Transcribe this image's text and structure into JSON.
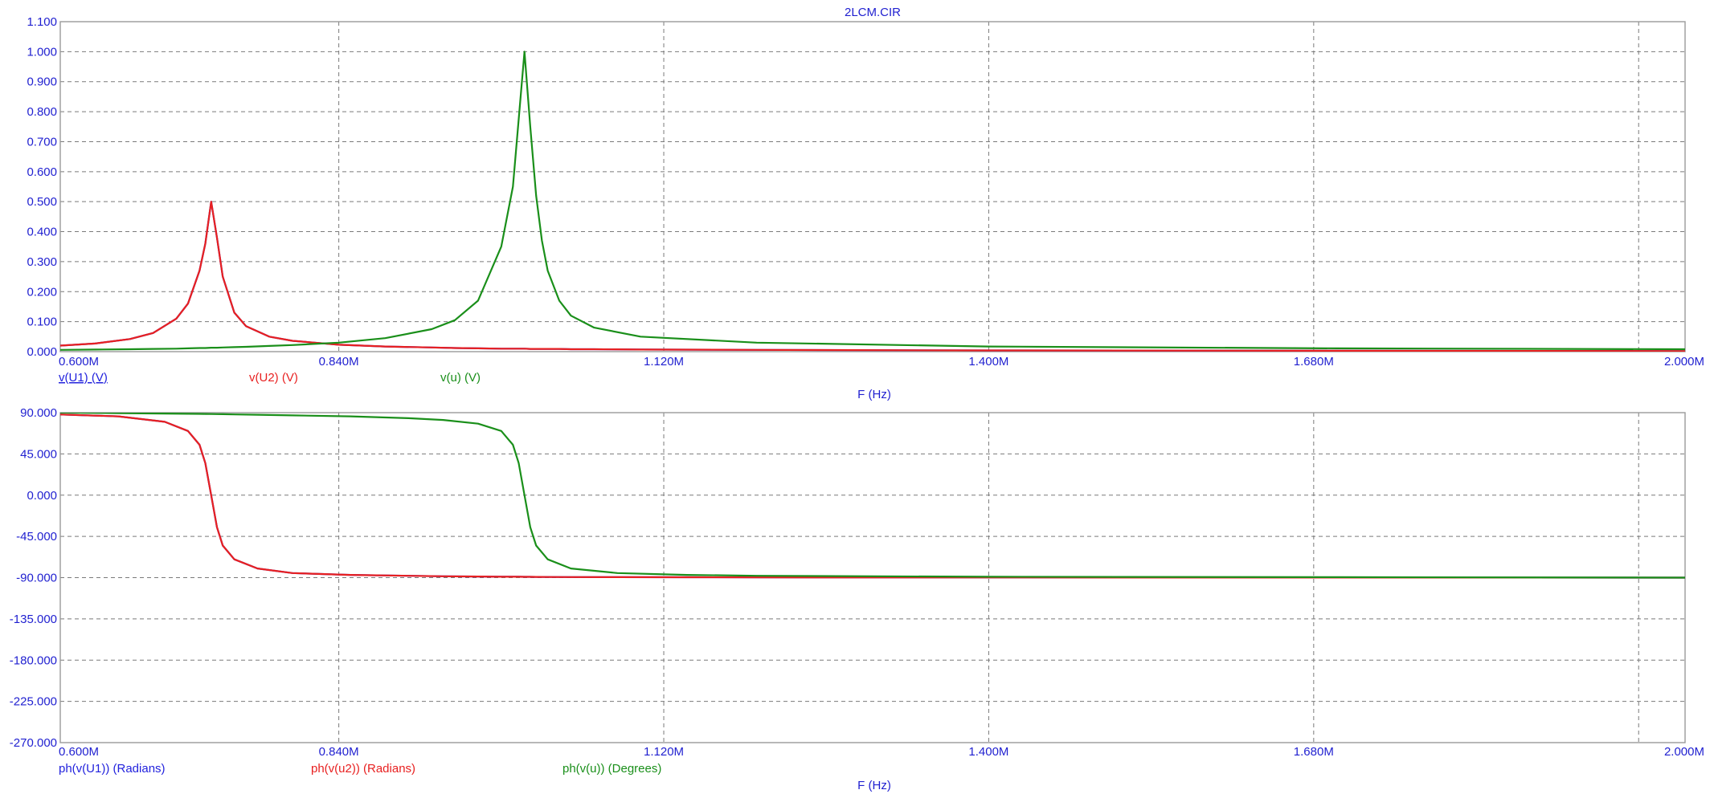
{
  "chart_data": [
    {
      "type": "line",
      "title": "2LCM.CIR",
      "xlabel": "F (Hz)",
      "ylabel": "",
      "xlim": [
        0.6,
        2.0
      ],
      "ylim": [
        0,
        1.1
      ],
      "grid": true,
      "xtick_values": [
        0.6,
        0.84,
        1.12,
        1.4,
        1.68,
        2.0
      ],
      "xtick_labels": [
        "0.600M",
        "0.840M",
        "1.120M",
        "1.400M",
        "1.680M",
        "2.000M"
      ],
      "extra_vgrid": [
        1.96
      ],
      "ytick_values": [
        0,
        0.1,
        0.2,
        0.3,
        0.4,
        0.5,
        0.6,
        0.7,
        0.8,
        0.9,
        1.0,
        1.1
      ],
      "ytick_labels": [
        "0.000",
        "0.100",
        "0.200",
        "0.300",
        "0.400",
        "0.500",
        "0.600",
        "0.700",
        "0.800",
        "0.900",
        "1.000",
        "1.100"
      ],
      "x": [
        0.6,
        0.63,
        0.66,
        0.68,
        0.7,
        0.71,
        0.72,
        0.725,
        0.73,
        0.735,
        0.74,
        0.75,
        0.76,
        0.78,
        0.8,
        0.84,
        0.88,
        0.92,
        0.94,
        0.96,
        0.98,
        0.99,
        1.0,
        1.005,
        1.01,
        1.015,
        1.02,
        1.03,
        1.04,
        1.06,
        1.1,
        1.2,
        1.4,
        1.7,
        2.0
      ],
      "series": [
        {
          "name": "v(U1) (V)",
          "color": "#2222dd",
          "values": [
            0.02,
            0.027,
            0.042,
            0.062,
            0.11,
            0.16,
            0.27,
            0.36,
            0.5,
            0.38,
            0.25,
            0.13,
            0.085,
            0.05,
            0.036,
            0.023,
            0.017,
            0.014,
            0.012,
            0.011,
            0.01,
            0.01,
            0.01,
            0.009,
            0.009,
            0.009,
            0.009,
            0.009,
            0.008,
            0.008,
            0.007,
            0.006,
            0.004,
            0.003,
            0.002
          ]
        },
        {
          "name": "v(U2) (V)",
          "color": "#e82020",
          "values": [
            0.02,
            0.027,
            0.042,
            0.062,
            0.11,
            0.16,
            0.27,
            0.36,
            0.5,
            0.38,
            0.25,
            0.13,
            0.085,
            0.05,
            0.036,
            0.023,
            0.017,
            0.014,
            0.012,
            0.011,
            0.01,
            0.01,
            0.01,
            0.009,
            0.009,
            0.009,
            0.009,
            0.009,
            0.008,
            0.008,
            0.007,
            0.006,
            0.004,
            0.003,
            0.002
          ]
        },
        {
          "name": "v(u) (V)",
          "color": "#1a8f1a",
          "values": [
            0.006,
            0.007,
            0.008,
            0.009,
            0.01,
            0.011,
            0.012,
            0.012,
            0.013,
            0.013,
            0.014,
            0.015,
            0.016,
            0.019,
            0.022,
            0.03,
            0.045,
            0.075,
            0.105,
            0.17,
            0.35,
            0.55,
            1.0,
            0.75,
            0.52,
            0.37,
            0.27,
            0.17,
            0.12,
            0.08,
            0.05,
            0.03,
            0.017,
            0.011,
            0.008
          ]
        }
      ]
    },
    {
      "type": "line",
      "title": "",
      "xlabel": "F (Hz)",
      "ylabel": "",
      "xlim": [
        0.6,
        2.0
      ],
      "ylim": [
        -270,
        90
      ],
      "grid": true,
      "xtick_values": [
        0.6,
        0.84,
        1.12,
        1.4,
        1.68,
        2.0
      ],
      "xtick_labels": [
        "0.600M",
        "0.840M",
        "1.120M",
        "1.400M",
        "1.680M",
        "2.000M"
      ],
      "extra_vgrid": [
        1.96
      ],
      "ytick_values": [
        90,
        45,
        0,
        -45,
        -90,
        -135,
        -180,
        -225,
        -270
      ],
      "ytick_labels": [
        "90.000",
        "45.000",
        "0.000",
        "-45.000",
        "-90.000",
        "-135.000",
        "-180.000",
        "-225.000",
        "-270.000"
      ],
      "x": [
        0.6,
        0.65,
        0.69,
        0.71,
        0.72,
        0.725,
        0.73,
        0.735,
        0.74,
        0.75,
        0.77,
        0.8,
        0.85,
        0.9,
        0.93,
        0.96,
        0.98,
        0.99,
        0.995,
        1.0,
        1.005,
        1.01,
        1.02,
        1.04,
        1.08,
        1.14,
        1.2,
        1.4,
        1.7,
        2.0
      ],
      "series": [
        {
          "name": "ph(v(U1)) (Radians)",
          "color": "#2222dd",
          "values": [
            88,
            86,
            80,
            70,
            55,
            35,
            0,
            -35,
            -55,
            -70,
            -80,
            -85,
            -87,
            -88,
            -88.5,
            -88.8,
            -89,
            -89,
            -89,
            -89.1,
            -89.1,
            -89.2,
            -89.3,
            -89.4,
            -89.5,
            -89.6,
            -89.7,
            -89.8,
            -89.9,
            -90
          ]
        },
        {
          "name": "ph(v(u2)) (Radians)",
          "color": "#e82020",
          "values": [
            88,
            86,
            80,
            70,
            55,
            35,
            0,
            -35,
            -55,
            -70,
            -80,
            -85,
            -87,
            -88,
            -88.5,
            -88.8,
            -89,
            -89,
            -89,
            -89.1,
            -89.1,
            -89.2,
            -89.3,
            -89.4,
            -89.5,
            -89.6,
            -89.7,
            -89.8,
            -89.9,
            -90
          ]
        },
        {
          "name": "ph(v(u)) (Degrees)",
          "color": "#1a8f1a",
          "values": [
            90,
            89.5,
            89,
            88.8,
            88.7,
            88.6,
            88.5,
            88.4,
            88.3,
            88.1,
            87.7,
            87,
            86,
            84,
            82,
            78,
            70,
            55,
            35,
            0,
            -35,
            -55,
            -70,
            -80,
            -85,
            -87,
            -88,
            -89,
            -89.5,
            -90
          ]
        }
      ]
    }
  ]
}
